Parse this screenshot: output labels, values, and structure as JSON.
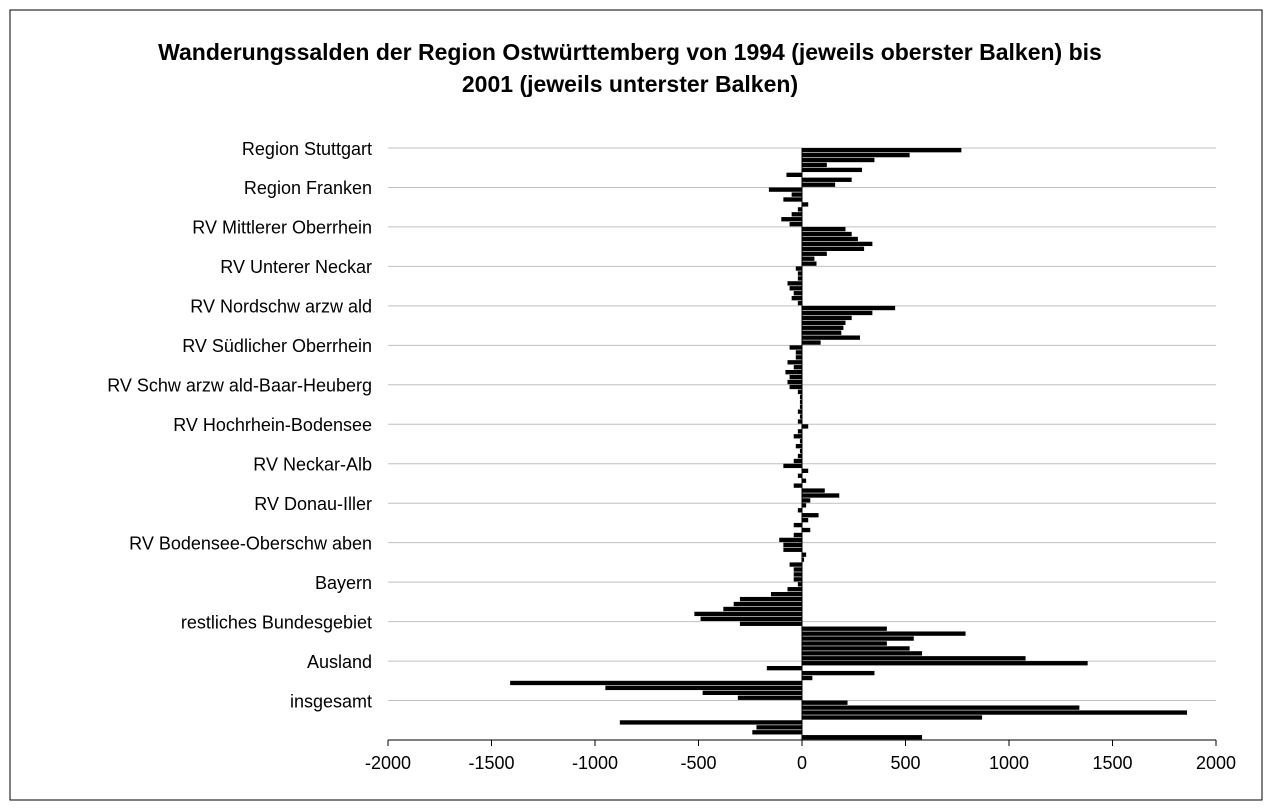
{
  "chart_data": {
    "type": "barh",
    "title": "Wanderungssalden der Region Ostwürttemberg von 1994 (jeweils oberster Balken) bis 2001 (jeweils unterster Balken)",
    "categories": [
      "Region Stuttgart",
      "Region Franken",
      "RV Mittlerer Oberrhein",
      "RV Unterer Neckar",
      "RV Nordschw arzw ald",
      "RV Südlicher Oberrhein",
      "RV Schw arzw ald-Baar-Heuberg",
      "RV Hochrhein-Bodensee",
      "RV Neckar-Alb",
      "RV Donau-Iller",
      "RV Bodensee-Oberschw aben",
      "Bayern",
      "restliches Bundesgebiet",
      "Ausland",
      "insgesamt"
    ],
    "series": [
      {
        "color": "#000000",
        "values": [
          770,
          -160,
          210,
          -30,
          450,
          -60,
          -60,
          30,
          -90,
          20,
          -90,
          -20,
          -300,
          1380,
          220
        ]
      },
      {
        "color": "#000000",
        "values": [
          520,
          -50,
          240,
          -20,
          340,
          -30,
          -20,
          -20,
          30,
          -20,
          -90,
          -70,
          410,
          -170,
          1340
        ]
      },
      {
        "color": "#000000",
        "values": [
          350,
          -90,
          270,
          -20,
          240,
          -30,
          -10,
          -40,
          -20,
          80,
          20,
          -150,
          790,
          350,
          1860
        ]
      },
      {
        "color": "#000000",
        "values": [
          120,
          30,
          340,
          -70,
          210,
          -70,
          -10,
          -10,
          20,
          30,
          10,
          -300,
          540,
          50,
          870
        ]
      },
      {
        "color": "#000000",
        "values": [
          290,
          -20,
          300,
          -60,
          200,
          -40,
          -10,
          -30,
          -40,
          -40,
          -60,
          -330,
          410,
          -1410,
          -880
        ]
      },
      {
        "color": "#000000",
        "values": [
          -75,
          -50,
          120,
          -40,
          190,
          -80,
          -20,
          -10,
          110,
          40,
          -40,
          -380,
          520,
          -950,
          -220
        ]
      },
      {
        "color": "#000000",
        "values": [
          240,
          -100,
          60,
          -50,
          280,
          -60,
          -10,
          -20,
          180,
          -40,
          -40,
          -520,
          580,
          -480,
          -240
        ]
      },
      {
        "color": "#000000",
        "values": [
          160,
          -60,
          70,
          -20,
          90,
          -70,
          -20,
          -40,
          40,
          -110,
          -40,
          -490,
          1080,
          -310,
          580
        ]
      }
    ],
    "xlim": [
      -2000,
      2000
    ],
    "xticks": [
      -2000,
      -1500,
      -1000,
      -500,
      0,
      500,
      1000,
      1500,
      2000
    ],
    "grid": true
  }
}
